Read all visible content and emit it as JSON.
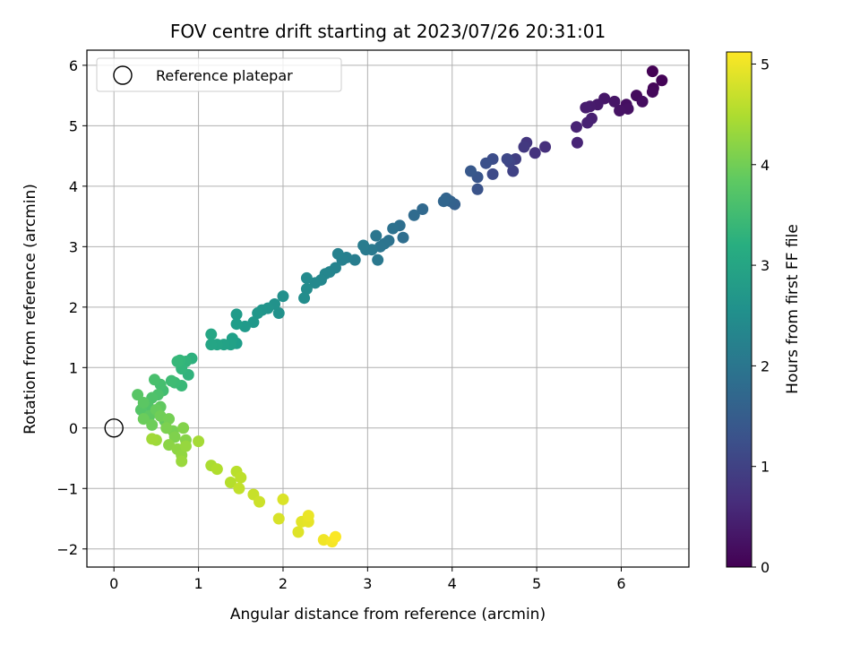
{
  "chart_data": {
    "type": "scatter",
    "title": "FOV centre drift starting at 2023/07/26 20:31:01",
    "xlabel": "Angular distance from reference (arcmin)",
    "ylabel": "Rotation from reference (arcmin)",
    "xlim": [
      -0.32,
      6.8
    ],
    "ylim": [
      -2.3,
      6.25
    ],
    "xticks": [
      0,
      1,
      2,
      3,
      4,
      5,
      6
    ],
    "yticks": [
      -2,
      -1,
      0,
      1,
      2,
      3,
      4,
      5,
      6
    ],
    "grid": true,
    "legend": {
      "position": "top-left",
      "entries": [
        "Reference platepar"
      ]
    },
    "reference_point": {
      "x": 0,
      "y": 0
    },
    "colorbar": {
      "label": "Hours from first FF file",
      "range": [
        0,
        5.12
      ],
      "ticks": [
        0,
        1,
        2,
        3,
        4,
        5
      ],
      "colormap": "viridis"
    },
    "series": [
      {
        "points": [
          [
            6.37,
            5.9,
            0.02
          ],
          [
            6.48,
            5.75,
            0.05
          ],
          [
            6.38,
            5.62,
            0.08
          ],
          [
            6.37,
            5.56,
            0.11
          ],
          [
            6.18,
            5.5,
            0.14
          ],
          [
            6.25,
            5.4,
            0.17
          ],
          [
            6.06,
            5.35,
            0.2
          ],
          [
            6.08,
            5.28,
            0.23
          ],
          [
            5.98,
            5.25,
            0.26
          ],
          [
            5.92,
            5.4,
            0.29
          ],
          [
            5.8,
            5.45,
            0.32
          ],
          [
            5.72,
            5.35,
            0.35
          ],
          [
            5.63,
            5.32,
            0.38
          ],
          [
            5.58,
            5.3,
            0.41
          ],
          [
            5.65,
            5.12,
            0.44
          ],
          [
            5.6,
            5.05,
            0.47
          ],
          [
            5.47,
            4.98,
            0.5
          ],
          [
            5.48,
            4.72,
            0.53
          ],
          [
            5.1,
            4.65,
            0.7
          ],
          [
            4.98,
            4.55,
            0.75
          ],
          [
            4.88,
            4.72,
            0.8
          ],
          [
            4.85,
            4.65,
            0.85
          ],
          [
            4.75,
            4.45,
            0.95
          ],
          [
            4.72,
            4.25,
            1.0
          ],
          [
            4.68,
            4.4,
            1.05
          ],
          [
            4.65,
            4.45,
            1.1
          ],
          [
            4.48,
            4.2,
            1.15
          ],
          [
            4.48,
            4.45,
            1.2
          ],
          [
            4.4,
            4.38,
            1.25
          ],
          [
            4.3,
            3.95,
            1.3
          ],
          [
            4.3,
            4.15,
            1.35
          ],
          [
            4.22,
            4.25,
            1.4
          ],
          [
            4.03,
            3.7,
            1.55
          ],
          [
            3.98,
            3.75,
            1.6
          ],
          [
            3.93,
            3.8,
            1.63
          ],
          [
            3.9,
            3.75,
            1.66
          ],
          [
            3.65,
            3.62,
            1.72
          ],
          [
            3.55,
            3.52,
            1.78
          ],
          [
            3.42,
            3.15,
            1.83
          ],
          [
            3.38,
            3.35,
            1.86
          ],
          [
            3.3,
            3.3,
            1.9
          ],
          [
            3.25,
            3.1,
            1.93
          ],
          [
            3.2,
            3.05,
            1.96
          ],
          [
            3.15,
            3.0,
            1.99
          ],
          [
            3.1,
            3.18,
            2.02
          ],
          [
            3.12,
            2.78,
            2.05
          ],
          [
            3.05,
            2.95,
            2.08
          ],
          [
            2.98,
            2.95,
            2.11
          ],
          [
            2.95,
            3.02,
            2.14
          ],
          [
            2.85,
            2.78,
            2.17
          ],
          [
            2.75,
            2.82,
            2.2
          ],
          [
            2.7,
            2.78,
            2.23
          ],
          [
            2.65,
            2.88,
            2.26
          ],
          [
            2.62,
            2.65,
            2.29
          ],
          [
            2.55,
            2.58,
            2.32
          ],
          [
            2.5,
            2.55,
            2.35
          ],
          [
            2.45,
            2.45,
            2.38
          ],
          [
            2.38,
            2.4,
            2.41
          ],
          [
            2.28,
            2.48,
            2.44
          ],
          [
            2.28,
            2.3,
            2.47
          ],
          [
            2.25,
            2.15,
            2.5
          ],
          [
            2.0,
            2.18,
            2.55
          ],
          [
            1.95,
            1.9,
            2.58
          ],
          [
            1.9,
            2.05,
            2.61
          ],
          [
            1.82,
            1.98,
            2.64
          ],
          [
            1.75,
            1.95,
            2.67
          ],
          [
            1.7,
            1.9,
            2.7
          ],
          [
            1.65,
            1.75,
            2.73
          ],
          [
            1.55,
            1.68,
            2.76
          ],
          [
            1.45,
            1.88,
            2.79
          ],
          [
            1.45,
            1.72,
            2.82
          ],
          [
            1.45,
            1.4,
            2.85
          ],
          [
            1.4,
            1.48,
            2.88
          ],
          [
            1.38,
            1.38,
            2.91
          ],
          [
            1.3,
            1.38,
            2.94
          ],
          [
            1.22,
            1.38,
            2.97
          ],
          [
            1.15,
            1.38,
            3.0
          ],
          [
            1.15,
            1.55,
            3.03
          ],
          [
            0.92,
            1.15,
            3.25
          ],
          [
            0.88,
            0.88,
            3.3
          ],
          [
            0.85,
            1.1,
            3.33
          ],
          [
            0.8,
            0.98,
            3.36
          ],
          [
            0.78,
            1.12,
            3.39
          ],
          [
            0.75,
            1.1,
            3.42
          ],
          [
            0.8,
            0.7,
            3.45
          ],
          [
            0.72,
            0.75,
            3.48
          ],
          [
            0.68,
            0.78,
            3.51
          ],
          [
            0.58,
            0.62,
            3.56
          ],
          [
            0.55,
            0.72,
            3.59
          ],
          [
            0.48,
            0.8,
            3.62
          ],
          [
            0.52,
            0.55,
            3.65
          ],
          [
            0.45,
            0.5,
            3.68
          ],
          [
            0.4,
            0.38,
            3.71
          ],
          [
            0.32,
            0.3,
            3.74
          ],
          [
            0.28,
            0.55,
            3.77
          ],
          [
            0.35,
            0.42,
            3.8
          ],
          [
            0.42,
            0.2,
            3.83
          ],
          [
            0.55,
            0.35,
            3.86
          ],
          [
            0.6,
            0.12,
            3.89
          ],
          [
            0.5,
            0.3,
            3.92
          ],
          [
            0.35,
            0.15,
            3.95
          ],
          [
            0.45,
            0.05,
            3.98
          ],
          [
            0.55,
            0.2,
            4.01
          ],
          [
            0.65,
            0.15,
            4.04
          ],
          [
            0.7,
            -0.05,
            4.07
          ],
          [
            0.62,
            0.0,
            4.1
          ],
          [
            0.72,
            -0.15,
            4.13
          ],
          [
            0.82,
            0.0,
            4.16
          ],
          [
            0.85,
            -0.2,
            4.19
          ],
          [
            0.65,
            -0.28,
            4.22
          ],
          [
            0.75,
            -0.35,
            4.25
          ],
          [
            0.8,
            -0.45,
            4.28
          ],
          [
            0.85,
            -0.3,
            4.31
          ],
          [
            0.8,
            -0.55,
            4.34
          ],
          [
            0.5,
            -0.2,
            4.37
          ],
          [
            0.45,
            -0.18,
            4.4
          ],
          [
            1.0,
            -0.22,
            4.43
          ],
          [
            1.15,
            -0.62,
            4.48
          ],
          [
            1.22,
            -0.68,
            4.52
          ],
          [
            1.38,
            -0.9,
            4.56
          ],
          [
            1.45,
            -0.72,
            4.59
          ],
          [
            1.5,
            -0.82,
            4.62
          ],
          [
            1.48,
            -1.0,
            4.65
          ],
          [
            1.65,
            -1.1,
            4.7
          ],
          [
            1.72,
            -1.22,
            4.74
          ],
          [
            1.95,
            -1.5,
            4.82
          ],
          [
            2.0,
            -1.18,
            4.85
          ],
          [
            2.18,
            -1.72,
            4.88
          ],
          [
            2.22,
            -1.55,
            4.91
          ],
          [
            2.3,
            -1.55,
            4.94
          ],
          [
            2.3,
            -1.45,
            4.97
          ],
          [
            2.48,
            -1.85,
            5.02
          ],
          [
            2.58,
            -1.88,
            5.06
          ],
          [
            2.62,
            -1.8,
            5.1
          ]
        ]
      }
    ]
  }
}
